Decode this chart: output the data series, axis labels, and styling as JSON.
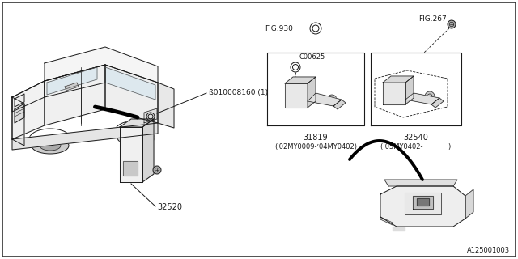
{
  "bg_color": "#ffffff",
  "border_color": "#1a1a1a",
  "fig_width": 6.4,
  "fig_height": 3.2,
  "dpi": 100,
  "watermark": "A125001003",
  "labels": {
    "fig930": "FIG.930",
    "fig267": "FIG.267",
    "c00625": "C00625",
    "part_31819": "31819",
    "part_31819_note": "(ʼ02MY0009-ʼ04MY0402)",
    "part_32540": "32540",
    "part_32540_note": "(ʼ05MY0402-            )",
    "part_32520": "32520",
    "bolt_label": "ß010008160 (1)"
  }
}
